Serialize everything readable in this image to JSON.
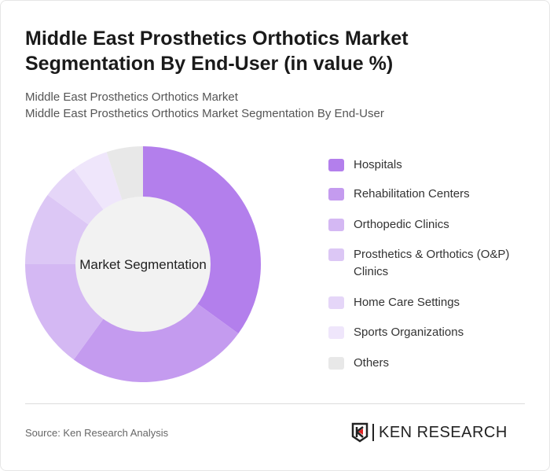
{
  "title": "Middle East Prosthetics Orthotics Market Segmentation By End-User (in value %)",
  "subtitle_lines": [
    "Middle East Prosthetics Orthotics Market",
    "Middle East Prosthetics Orthotics Market Segmentation By End-User"
  ],
  "source": "Source: Ken Research Analysis",
  "logo_text": "KEN RESEARCH",
  "chart_data": {
    "type": "pie",
    "donut": true,
    "center_label": "Market Segmentation",
    "legend_position": "right",
    "categories": [
      "Hospitals",
      "Rehabilitation Centers",
      "Orthopedic Clinics",
      "Prosthetics & Orthotics (O&P) Clinics",
      "Home Care Settings",
      "Sports Organizations",
      "Others"
    ],
    "values": [
      35,
      25,
      15,
      10,
      5,
      5,
      5
    ],
    "colors": [
      "#b37fec",
      "#c49bef",
      "#d4b8f3",
      "#dcc7f5",
      "#e5d6f8",
      "#efe6fb",
      "#e8e8e8"
    ]
  }
}
